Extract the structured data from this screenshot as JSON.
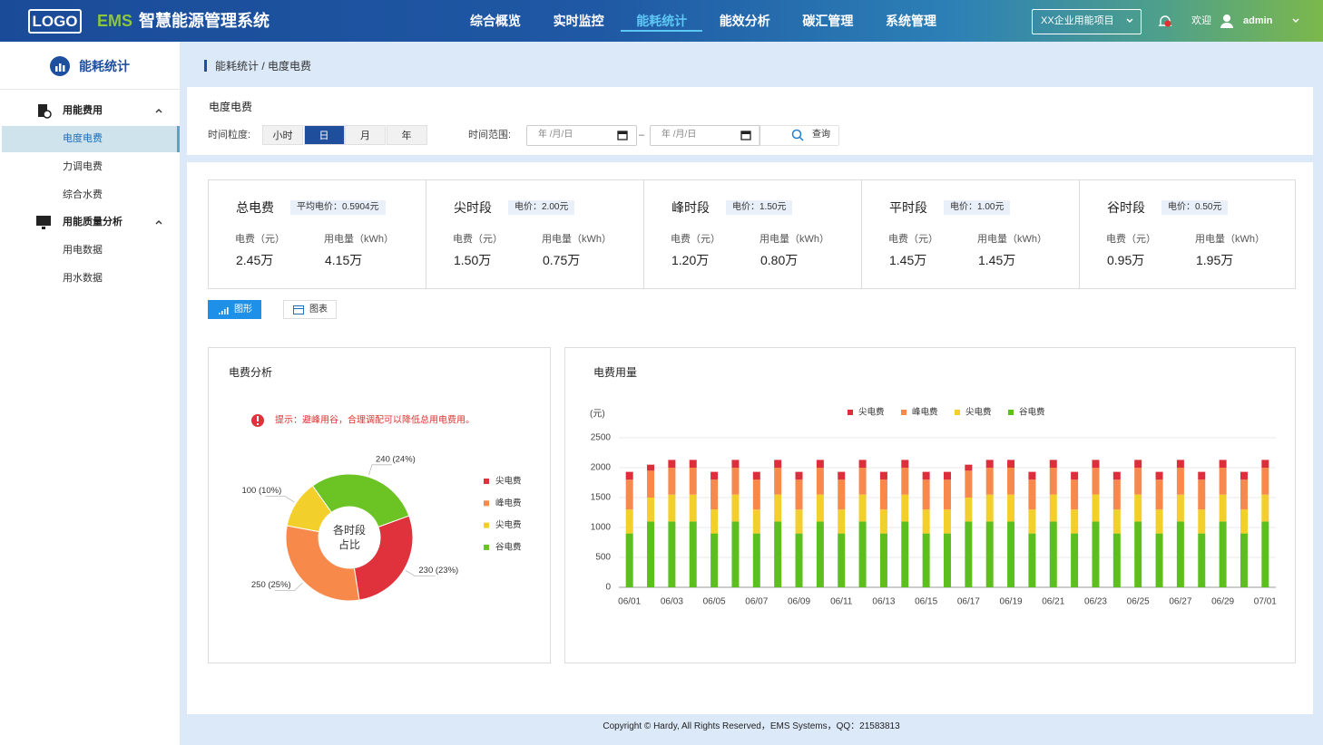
{
  "header": {
    "logo": "LOGO",
    "brand": "EMS",
    "title": "智慧能源管理系统",
    "nav": [
      "综合概览",
      "实时监控",
      "能耗统计",
      "能效分析",
      "碳汇管理",
      "系统管理"
    ],
    "project": "XX企业用能项目",
    "welcome": "欢迎",
    "user": "admin"
  },
  "sidebar": {
    "title": "能耗统计",
    "groups": [
      {
        "label": "用能费用",
        "items": [
          "电度电费",
          "力调电费",
          "综合水费"
        ]
      },
      {
        "label": "用能质量分析",
        "items": [
          "用电数据",
          "用水数据"
        ]
      }
    ]
  },
  "breadcrumb": "能耗统计 / 电度电费",
  "filter": {
    "title": "电度电费",
    "granularity_label": "时间粒度:",
    "granularity": [
      "小时",
      "日",
      "月",
      "年"
    ],
    "range_label": "时间范围:",
    "dates": [
      "年 /月/日",
      "年 /月/日"
    ],
    "range_separator": "–",
    "query": "查询"
  },
  "cards": [
    {
      "title": "总电费",
      "price": "平均电价：0.5904元",
      "fee_label": "电费（元）",
      "usage_label": "用电量（kWh）",
      "fee": "2.45万",
      "usage": "4.15万"
    },
    {
      "title": "尖时段",
      "price": "电价：2.00元",
      "fee_label": "电费（元）",
      "usage_label": "用电量（kWh）",
      "fee": "1.50万",
      "usage": "0.75万"
    },
    {
      "title": "峰时段",
      "price": "电价：1.50元",
      "fee_label": "电费（元）",
      "usage_label": "用电量（kWh）",
      "fee": "1.20万",
      "usage": "0.80万"
    },
    {
      "title": "平时段",
      "price": "电价：1.00元",
      "fee_label": "电费（元）",
      "usage_label": "用电量（kWh）",
      "fee": "1.45万",
      "usage": "1.45万"
    },
    {
      "title": "谷时段",
      "price": "电价：0.50元",
      "fee_label": "电费（元）",
      "usage_label": "用电量（kWh）",
      "fee": "0.95万",
      "usage": "1.95万"
    }
  ],
  "view_toggle": [
    "图形",
    "图表"
  ],
  "chart_data": [
    {
      "type": "pie",
      "title": "电费分析",
      "annotation": "提示：避峰用谷，合理调配可以降低总用电费用。",
      "center_label": "各时段占比",
      "categories": [
        "尖电费",
        "峰电费",
        "尖电费",
        "谷电费"
      ],
      "values": [
        230,
        250,
        100,
        240
      ],
      "value_labels": [
        "230 (23%)",
        "250 (25%)",
        "100 (10%)",
        "240 (24%)"
      ],
      "colors": [
        "#e0323c",
        "#f7894a",
        "#f3cf2b",
        "#6cc324"
      ]
    },
    {
      "type": "bar",
      "stacked": true,
      "title": "电费用量",
      "y_label": "(元)",
      "categories": [
        "06/01",
        null,
        "06/03",
        null,
        "06/05",
        null,
        "06/07",
        null,
        "06/09",
        null,
        "06/11",
        null,
        "06/13",
        null,
        "06/15",
        null,
        "06/17",
        null,
        "06/19",
        null,
        "06/21",
        null,
        "06/23",
        null,
        "06/25",
        null,
        "06/27",
        null,
        "06/29",
        null,
        "07/01"
      ],
      "series": [
        {
          "name": "尖电费",
          "color": "#dd2e3c",
          "values": [
            130,
            100,
            130,
            130,
            130,
            130,
            130,
            130,
            130,
            130,
            130,
            130,
            130,
            130,
            130,
            130,
            100,
            130,
            130,
            130,
            130,
            130,
            130,
            130,
            130,
            130,
            130,
            130,
            130,
            130,
            130
          ]
        },
        {
          "name": "峰电费",
          "color": "#f6894b",
          "values": [
            500,
            450,
            450,
            450,
            500,
            450,
            500,
            450,
            500,
            450,
            500,
            450,
            500,
            450,
            500,
            500,
            450,
            450,
            450,
            500,
            450,
            500,
            450,
            500,
            450,
            500,
            450,
            500,
            450,
            500,
            450
          ]
        },
        {
          "name": "尖电费",
          "color": "#f3cf2b",
          "values": [
            400,
            400,
            450,
            450,
            400,
            450,
            400,
            450,
            400,
            450,
            400,
            450,
            400,
            450,
            400,
            400,
            400,
            450,
            450,
            400,
            450,
            400,
            450,
            400,
            450,
            400,
            450,
            400,
            450,
            400,
            450
          ]
        },
        {
          "name": "谷电费",
          "color": "#5cbf1e",
          "values": [
            900,
            1100,
            1100,
            1100,
            900,
            1100,
            900,
            1100,
            900,
            1100,
            900,
            1100,
            900,
            1100,
            900,
            900,
            1100,
            1100,
            1100,
            900,
            1100,
            900,
            1100,
            900,
            1100,
            900,
            1100,
            900,
            1100,
            900,
            1100
          ]
        }
      ],
      "ylim": [
        0,
        2500
      ],
      "yticks": [
        0,
        500,
        1000,
        1500,
        2000,
        2500
      ],
      "grid": true,
      "legend": "top"
    }
  ],
  "footer": "Copyright © Hardy, All Rights Reserved，EMS Systems，QQ：21583813"
}
